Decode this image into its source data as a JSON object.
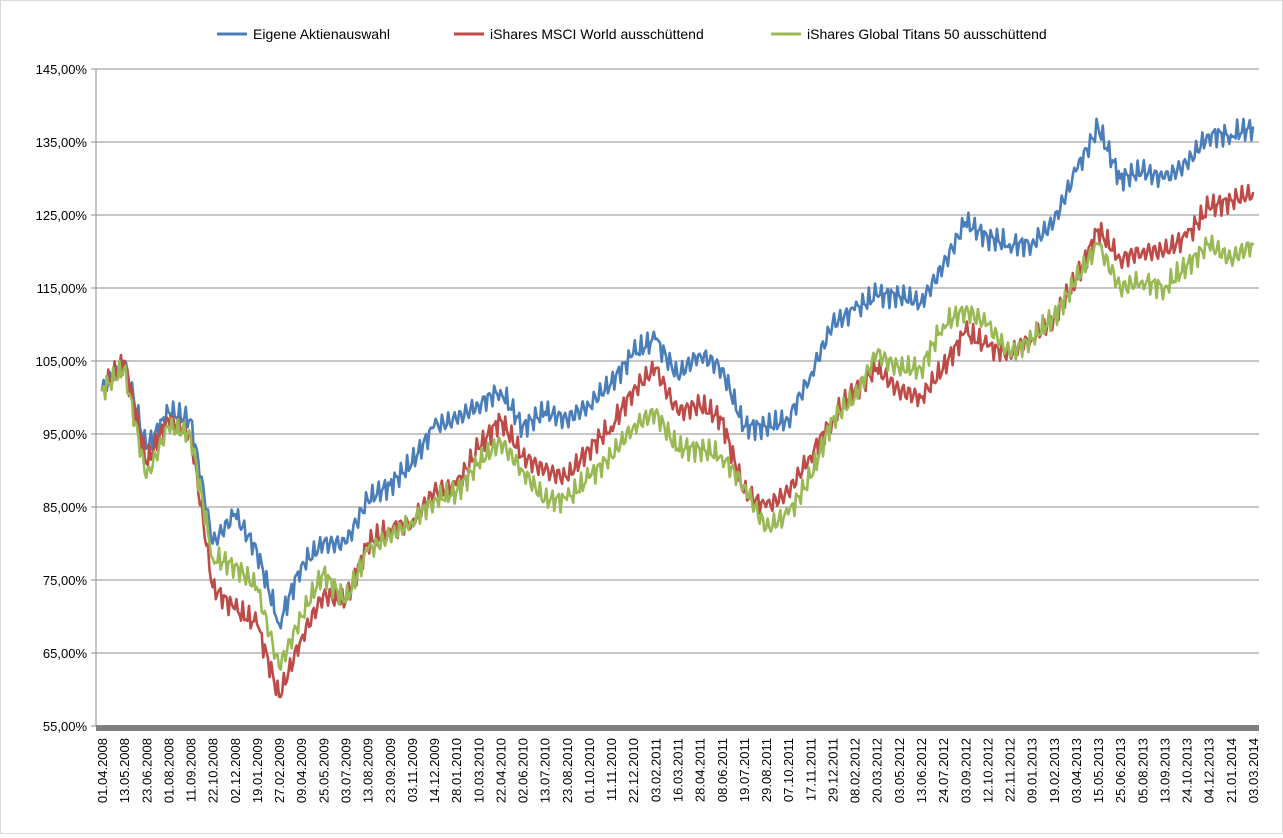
{
  "chart_data": {
    "type": "line",
    "title": "",
    "xlabel": "",
    "ylabel": "",
    "ylim": [
      55,
      145
    ],
    "y_ticks": [
      "55,00%",
      "65,00%",
      "75,00%",
      "85,00%",
      "95,00%",
      "105,00%",
      "115,00%",
      "125,00%",
      "135,00%",
      "145,00%"
    ],
    "grid": "horizontal",
    "legend_position": "top",
    "x_tick_labels": [
      "01.04.2008",
      "13.05.2008",
      "23.06.2008",
      "01.08.2008",
      "11.09.2008",
      "22.10.2008",
      "02.12.2008",
      "19.01.2009",
      "27.02.2009",
      "09.04.2009",
      "25.05.2009",
      "03.07.2009",
      "13.08.2009",
      "23.09.2009",
      "03.11.2009",
      "14.12.2009",
      "28.01.2010",
      "10.03.2010",
      "22.04.2010",
      "02.06.2010",
      "13.07.2010",
      "23.08.2010",
      "01.10.2010",
      "11.11.2010",
      "22.12.2010",
      "03.02.2011",
      "16.03.2011",
      "28.04.2011",
      "08.06.2011",
      "19.07.2011",
      "29.08.2011",
      "07.10.2011",
      "17.11.2011",
      "29.12.2011",
      "08.02.2012",
      "20.03.2012",
      "03.05.2012",
      "13.06.2012",
      "24.07.2012",
      "03.09.2012",
      "12.10.2012",
      "22.11.2012",
      "09.01.2013",
      "19.02.2013",
      "03.04.2013",
      "15.05.2013",
      "25.06.2013",
      "05.08.2013",
      "13.09.2013",
      "24.10.2013",
      "04.12.2013",
      "21.01.2014",
      "03.03.2014"
    ],
    "x": [
      "01.04.2008",
      "13.05.2008",
      "23.06.2008",
      "01.08.2008",
      "11.09.2008",
      "22.10.2008",
      "02.12.2008",
      "19.01.2009",
      "27.02.2009",
      "09.04.2009",
      "25.05.2009",
      "03.07.2009",
      "13.08.2009",
      "23.09.2009",
      "03.11.2009",
      "14.12.2009",
      "28.01.2010",
      "10.03.2010",
      "22.04.2010",
      "02.06.2010",
      "13.07.2010",
      "23.08.2010",
      "01.10.2010",
      "11.11.2010",
      "22.12.2010",
      "03.02.2011",
      "16.03.2011",
      "28.04.2011",
      "08.06.2011",
      "19.07.2011",
      "29.08.2011",
      "07.10.2011",
      "17.11.2011",
      "29.12.2011",
      "08.02.2012",
      "20.03.2012",
      "03.05.2012",
      "13.06.2012",
      "24.07.2012",
      "03.09.2012",
      "12.10.2012",
      "22.11.2012",
      "09.01.2013",
      "19.02.2013",
      "03.04.2013",
      "15.05.2013",
      "25.06.2013",
      "05.08.2013",
      "13.09.2013",
      "24.10.2013",
      "04.12.2013",
      "21.01.2014",
      "03.03.2014"
    ],
    "series": [
      {
        "name": "Eigene Aktienauswahl",
        "color": "#4a7ebb",
        "values": [
          101,
          105,
          93,
          98,
          97,
          80,
          84,
          79,
          69,
          77,
          80,
          80,
          86,
          88,
          91,
          96,
          97,
          99,
          101,
          96,
          98,
          97,
          99,
          102,
          106,
          108,
          103,
          106,
          104,
          96,
          96,
          97,
          103,
          110,
          112,
          114,
          114,
          113,
          118,
          124,
          122,
          121,
          121,
          124,
          131,
          137,
          130,
          131,
          130,
          132,
          136,
          136,
          137
        ]
      },
      {
        "name": "iShares MSCI World ausschüttend",
        "color": "#be4b48",
        "values": [
          101,
          105,
          91,
          97,
          95,
          74,
          71,
          69,
          59,
          67,
          73,
          72,
          80,
          82,
          83,
          87,
          88,
          93,
          97,
          92,
          90,
          89,
          93,
          96,
          101,
          104,
          98,
          99,
          97,
          87,
          85,
          87,
          92,
          97,
          101,
          104,
          101,
          100,
          104,
          109,
          107,
          106,
          108,
          111,
          116,
          123,
          119,
          120,
          120,
          122,
          126,
          127,
          128
        ]
      },
      {
        "name": "iShares Global Titans 50 ausschüttend",
        "color": "#98b954",
        "values": [
          101,
          104,
          89,
          96,
          95,
          78,
          77,
          74,
          63,
          70,
          76,
          72,
          79,
          81,
          83,
          86,
          87,
          91,
          94,
          90,
          86,
          86,
          89,
          92,
          96,
          98,
          93,
          93,
          92,
          88,
          82,
          84,
          89,
          97,
          100,
          106,
          104,
          104,
          110,
          112,
          110,
          106,
          108,
          111,
          116,
          121,
          115,
          116,
          115,
          118,
          121,
          119,
          121
        ]
      }
    ]
  }
}
